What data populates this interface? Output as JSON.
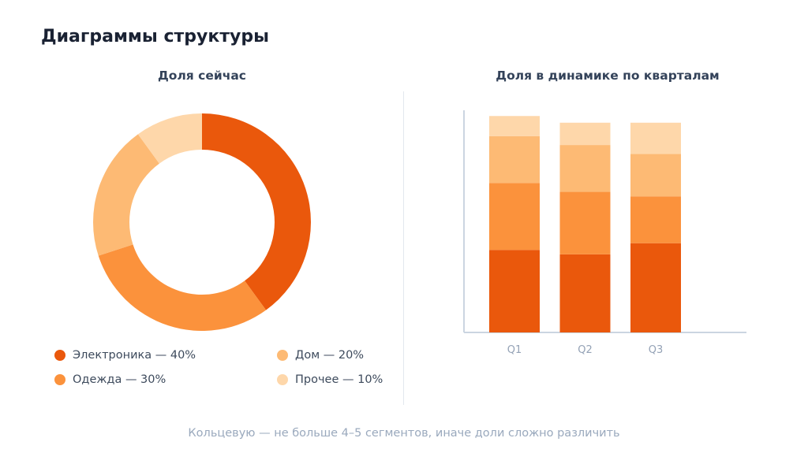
{
  "page_title": "Диаграммы структуры",
  "footnote": "Кольцевую — не больше 4–5 сегментов, иначе доли сложно различить",
  "colors": {
    "electronics": "#ea580c",
    "clothing": "#fb923c",
    "home": "#fdba74",
    "other": "#fed7aa",
    "axis": "#cbd5e1"
  },
  "chart_data": [
    {
      "type": "pie",
      "title": "Доля сейчас",
      "donut": true,
      "slices": [
        {
          "label": "Электроника — 40%",
          "value": 40,
          "color": "#ea580c"
        },
        {
          "label": "Одежда — 30%",
          "value": 30,
          "color": "#fb923c"
        },
        {
          "label": "Дом — 20%",
          "value": 20,
          "color": "#fdba74"
        },
        {
          "label": "Прочее — 10%",
          "value": 10,
          "color": "#fed7aa"
        }
      ],
      "legend": "bottom"
    },
    {
      "type": "bar",
      "stacked": true,
      "title": "Доля в динамике по кварталам",
      "categories": [
        "Q1",
        "Q2",
        "Q3"
      ],
      "series": [
        {
          "values": [
            37,
            35,
            40
          ],
          "color": "#ea580c"
        },
        {
          "values": [
            30,
            28,
            21
          ],
          "color": "#fb923c"
        },
        {
          "values": [
            21,
            21,
            19
          ],
          "color": "#fdba74"
        },
        {
          "values": [
            9,
            10,
            14
          ],
          "color": "#fed7aa"
        }
      ],
      "ylim": [
        0,
        100
      ],
      "grid": false,
      "legend": "none"
    }
  ]
}
